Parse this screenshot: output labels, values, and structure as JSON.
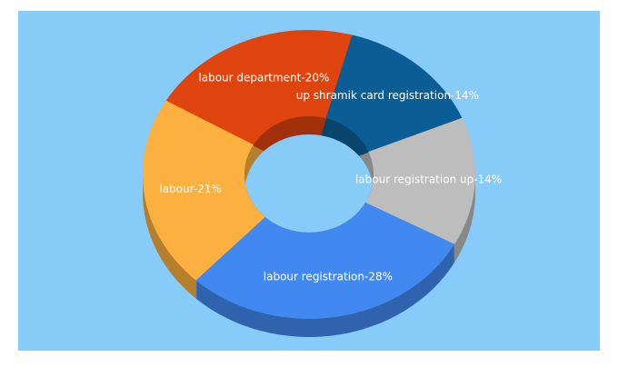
{
  "chart_data": {
    "type": "pie",
    "values": [
      14,
      14,
      28,
      21,
      20
    ],
    "value_labels": [
      "up shramik card registration-14%",
      "labour registration up-14%",
      "labour registration-28%",
      "labour-21%",
      "labour department-20%"
    ],
    "colors": [
      "#0b5e95",
      "#bdbdbd",
      "#4189f0",
      "#fbb040",
      "#e0440e"
    ],
    "background": "#87cbf8"
  }
}
